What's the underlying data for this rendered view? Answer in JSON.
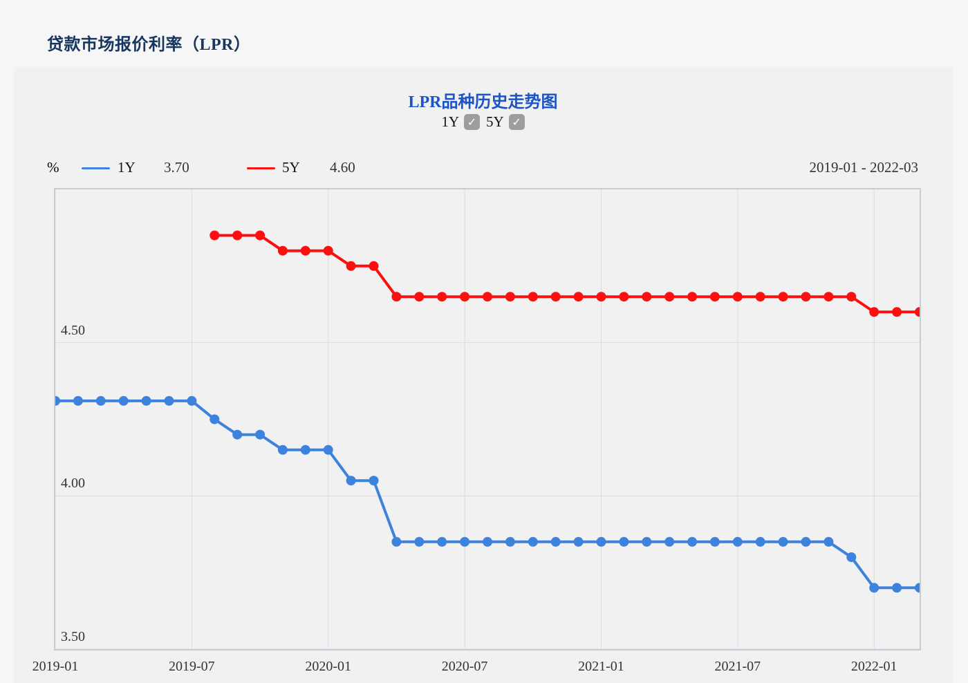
{
  "page_title": "贷款市场报价利率（LPR）",
  "panel": {
    "title": "LPR品种历史走势图",
    "toggles": [
      {
        "label": "1Y",
        "checked": true,
        "check_glyph": "✓"
      },
      {
        "label": "5Y",
        "checked": true,
        "check_glyph": "✓"
      }
    ],
    "unit_label": "%",
    "legend": [
      {
        "name": "1Y",
        "latest_value": "3.70",
        "color": "#3d82dd"
      },
      {
        "name": "5Y",
        "latest_value": "4.60",
        "color": "#fb0f0f"
      }
    ],
    "range_label": "2019-01 - 2022-03"
  },
  "chart_data": {
    "type": "line",
    "title": "LPR品种历史走势图",
    "ylabel": "%",
    "ylim": [
      3.5,
      5.0
    ],
    "x_start": "2019-01",
    "x_end": "2022-03",
    "x_total_months": 38,
    "x_tick_months": [
      0,
      6,
      12,
      18,
      24,
      30,
      36
    ],
    "x_tick_labels": [
      "2019-01",
      "2019-07",
      "2020-01",
      "2020-07",
      "2021-01",
      "2021-07",
      "2022-01"
    ],
    "y_ticks": [
      3.5,
      4.0,
      4.5
    ],
    "y_tick_labels": [
      "3.50",
      "4.00",
      "4.50"
    ],
    "grid": true,
    "legend_position": "top-left",
    "colors": {
      "grid": "#d9dce3",
      "border": "#c7cbd4"
    },
    "series": [
      {
        "name": "1Y",
        "color": "#3d82dd",
        "start_month": "2019-01",
        "x_offset_months": 0,
        "values": [
          4.31,
          4.31,
          4.31,
          4.31,
          4.31,
          4.31,
          4.31,
          4.25,
          4.2,
          4.2,
          4.15,
          4.15,
          4.15,
          4.05,
          4.05,
          3.85,
          3.85,
          3.85,
          3.85,
          3.85,
          3.85,
          3.85,
          3.85,
          3.85,
          3.85,
          3.85,
          3.85,
          3.85,
          3.85,
          3.85,
          3.85,
          3.85,
          3.85,
          3.85,
          3.85,
          3.8,
          3.7,
          3.7,
          3.7
        ]
      },
      {
        "name": "5Y",
        "color": "#fb0f0f",
        "start_month": "2019-08",
        "x_offset_months": 7,
        "values": [
          4.85,
          4.85,
          4.85,
          4.8,
          4.8,
          4.8,
          4.75,
          4.75,
          4.65,
          4.65,
          4.65,
          4.65,
          4.65,
          4.65,
          4.65,
          4.65,
          4.65,
          4.65,
          4.65,
          4.65,
          4.65,
          4.65,
          4.65,
          4.65,
          4.65,
          4.65,
          4.65,
          4.65,
          4.65,
          4.6,
          4.6,
          4.6
        ]
      }
    ]
  }
}
